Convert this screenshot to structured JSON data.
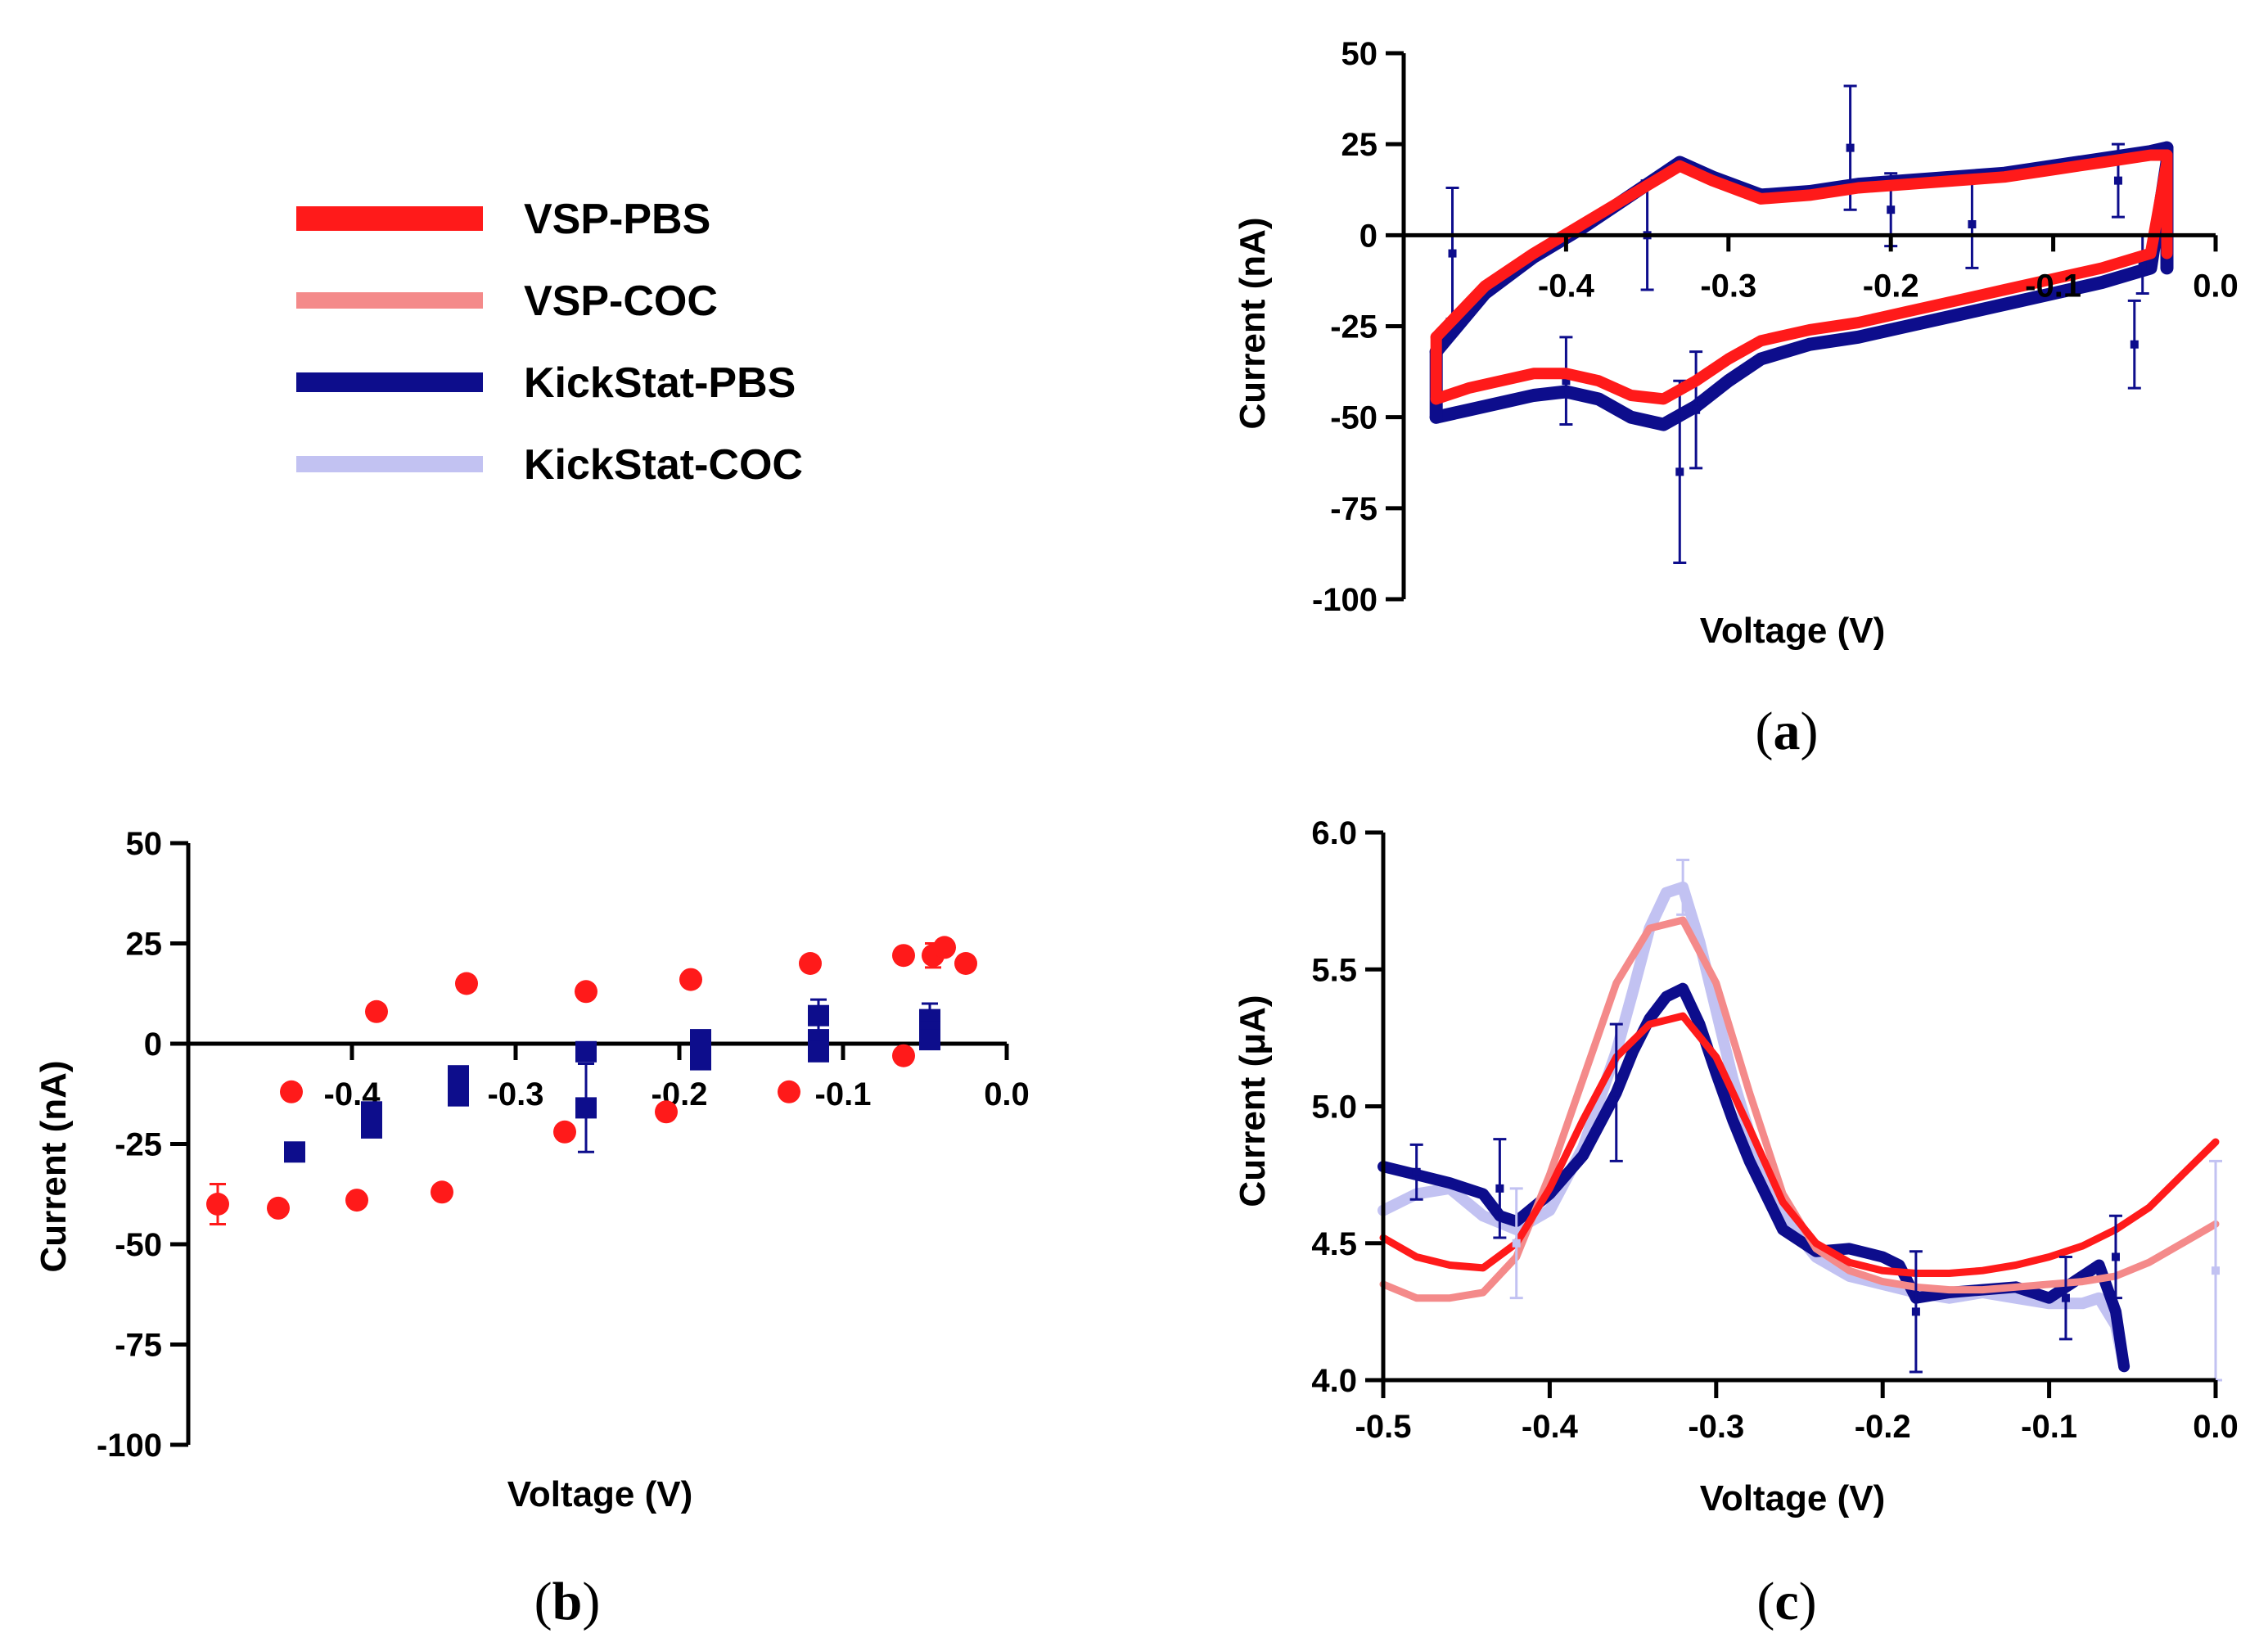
{
  "colors": {
    "vsp_pbs": "#ff1a1a",
    "vsp_coc": "#f48a8a",
    "kickstat_pbs": "#0d0d8c",
    "kickstat_coc": "#c2c2f2"
  },
  "legend": {
    "items": [
      {
        "label": "VSP-PBS",
        "color": "#ff1a1a"
      },
      {
        "label": "VSP-COC",
        "color": "#f48a8a"
      },
      {
        "label": "KickStat-PBS",
        "color": "#0d0d8c"
      },
      {
        "label": "KickStat-COC",
        "color": "#c2c2f2"
      }
    ]
  },
  "panels": {
    "a": {
      "open": "(",
      "letter": "a",
      "close": ")"
    },
    "b": {
      "open": "(",
      "letter": "b",
      "close": ")"
    },
    "c": {
      "open": "(",
      "letter": "c",
      "close": ")"
    }
  },
  "chart_data": [
    {
      "id": "a",
      "type": "line",
      "xlabel": "Voltage (V)",
      "ylabel": "Current (nA)",
      "xlim": [
        -0.5,
        0.0
      ],
      "ylim": [
        -100,
        50
      ],
      "xticks": [
        -0.4,
        -0.3,
        -0.2,
        -0.1,
        0.0
      ],
      "xtick_labels": [
        "-0.4",
        "-0.3",
        "-0.2",
        "-0.1",
        "0.0"
      ],
      "yticks": [
        50,
        25,
        0,
        -25,
        -50,
        -75,
        -100
      ],
      "ytick_labels": [
        "50",
        "25",
        "0",
        "-25",
        "-50",
        "-75",
        "-100"
      ],
      "x_axis_at_y": 0,
      "description_series": "cyclic voltammogram loops",
      "series": [
        {
          "name": "KickStat-PBS",
          "upper": {
            "x": [
              -0.48,
              -0.45,
              -0.42,
              -0.39,
              -0.36,
              -0.33,
              -0.31,
              -0.28,
              -0.25,
              -0.22,
              -0.19,
              -0.16,
              -0.13,
              -0.1,
              -0.07,
              -0.04,
              -0.03
            ],
            "y": [
              -32,
              -16,
              -6,
              2,
              11,
              20,
              16,
              11,
              12,
              14,
              15,
              16,
              17,
              19,
              21,
              23,
              24
            ]
          },
          "lower": {
            "x": [
              -0.48,
              -0.46,
              -0.44,
              -0.42,
              -0.4,
              -0.38,
              -0.36,
              -0.34,
              -0.32,
              -0.3,
              -0.28,
              -0.25,
              -0.22,
              -0.19,
              -0.16,
              -0.13,
              -0.1,
              -0.07,
              -0.04,
              -0.03
            ],
            "y": [
              -50,
              -48,
              -46,
              -44,
              -43,
              -45,
              -50,
              -52,
              -47,
              -40,
              -34,
              -30,
              -28,
              -25,
              -22,
              -19,
              -16,
              -13,
              -9,
              20
            ]
          },
          "error_bars": [
            {
              "x": -0.47,
              "y": -5,
              "err": 18
            },
            {
              "x": -0.4,
              "y": -40,
              "err": 12
            },
            {
              "x": -0.35,
              "y": 0,
              "err": 15
            },
            {
              "x": -0.33,
              "y": -65,
              "err": 25
            },
            {
              "x": -0.32,
              "y": -48,
              "err": 16
            },
            {
              "x": -0.225,
              "y": 24,
              "err": 17
            },
            {
              "x": -0.2,
              "y": 7,
              "err": 10
            },
            {
              "x": -0.15,
              "y": 3,
              "err": 12
            },
            {
              "x": -0.06,
              "y": 15,
              "err": 10
            },
            {
              "x": -0.05,
              "y": -30,
              "err": 12
            },
            {
              "x": -0.045,
              "y": -8,
              "err": 8
            }
          ]
        },
        {
          "name": "VSP-PBS",
          "upper": {
            "x": [
              -0.48,
              -0.45,
              -0.42,
              -0.39,
              -0.36,
              -0.33,
              -0.31,
              -0.28,
              -0.25,
              -0.22,
              -0.19,
              -0.16,
              -0.13,
              -0.1,
              -0.07,
              -0.04,
              -0.03
            ],
            "y": [
              -28,
              -14,
              -5,
              3,
              11,
              19,
              15,
              10,
              11,
              13,
              14,
              15,
              16,
              18,
              20,
              22,
              22
            ]
          },
          "lower": {
            "x": [
              -0.48,
              -0.46,
              -0.44,
              -0.42,
              -0.4,
              -0.38,
              -0.36,
              -0.34,
              -0.32,
              -0.3,
              -0.28,
              -0.25,
              -0.22,
              -0.19,
              -0.16,
              -0.13,
              -0.1,
              -0.07,
              -0.04,
              -0.03
            ],
            "y": [
              -45,
              -42,
              -40,
              -38,
              -38,
              -40,
              -44,
              -45,
              -40,
              -34,
              -29,
              -26,
              -24,
              -21,
              -18,
              -15,
              -12,
              -9,
              -5,
              20
            ]
          }
        }
      ]
    },
    {
      "id": "b",
      "type": "scatter",
      "xlabel": "Voltage (V)",
      "ylabel": "Current (nA)",
      "xlim": [
        -0.5,
        0.0
      ],
      "ylim": [
        -100,
        50
      ],
      "xticks": [
        -0.4,
        -0.3,
        -0.2,
        -0.1,
        0.0
      ],
      "xtick_labels": [
        "-0.4",
        "-0.3",
        "-0.2",
        "-0.1",
        "0.0"
      ],
      "yticks": [
        50,
        25,
        0,
        -25,
        -50,
        -75,
        -100
      ],
      "ytick_labels": [
        "50",
        "25",
        "0",
        "-25",
        "-50",
        "-75",
        "-100"
      ],
      "x_axis_at_y": 0,
      "series": [
        {
          "name": "VSP-PBS",
          "marker": "circle",
          "points": [
            {
              "x": -0.482,
              "y": -40,
              "err": 5
            },
            {
              "x": -0.445,
              "y": -41
            },
            {
              "x": -0.437,
              "y": -12
            },
            {
              "x": -0.397,
              "y": -39
            },
            {
              "x": -0.385,
              "y": 8
            },
            {
              "x": -0.345,
              "y": -37
            },
            {
              "x": -0.33,
              "y": 15
            },
            {
              "x": -0.27,
              "y": -22
            },
            {
              "x": -0.257,
              "y": 13
            },
            {
              "x": -0.208,
              "y": -17
            },
            {
              "x": -0.193,
              "y": 16
            },
            {
              "x": -0.133,
              "y": -12
            },
            {
              "x": -0.12,
              "y": 20
            },
            {
              "x": -0.063,
              "y": -3
            },
            {
              "x": -0.063,
              "y": 22
            },
            {
              "x": -0.045,
              "y": 22,
              "err": 3
            },
            {
              "x": -0.038,
              "y": 24
            },
            {
              "x": -0.025,
              "y": 20
            }
          ]
        },
        {
          "name": "KickStat-PBS",
          "marker": "square",
          "points": [
            {
              "x": -0.435,
              "y": -27
            },
            {
              "x": -0.388,
              "y": -17
            },
            {
              "x": -0.388,
              "y": -21
            },
            {
              "x": -0.335,
              "y": -8
            },
            {
              "x": -0.335,
              "y": -13
            },
            {
              "x": -0.257,
              "y": -2
            },
            {
              "x": -0.257,
              "y": -16,
              "err": 11
            },
            {
              "x": -0.187,
              "y": 1
            },
            {
              "x": -0.187,
              "y": -4
            },
            {
              "x": -0.115,
              "y": 7,
              "err": 4
            },
            {
              "x": -0.115,
              "y": 1
            },
            {
              "x": -0.115,
              "y": -2
            },
            {
              "x": -0.047,
              "y": 6,
              "err": 4
            },
            {
              "x": -0.047,
              "y": 3
            },
            {
              "x": -0.047,
              "y": 1
            }
          ]
        }
      ]
    },
    {
      "id": "c",
      "type": "line",
      "xlabel": "Voltage (V)",
      "ylabel": "Current (μA)",
      "xlim": [
        -0.5,
        0.0
      ],
      "ylim": [
        4.0,
        6.0
      ],
      "xticks": [
        -0.5,
        -0.4,
        -0.3,
        -0.2,
        -0.1,
        0.0
      ],
      "xtick_labels": [
        "-0.5",
        "-0.4",
        "-0.3",
        "-0.2",
        "-0.1",
        "0.0"
      ],
      "yticks": [
        6.0,
        5.5,
        5.0,
        4.5,
        4.0
      ],
      "ytick_labels": [
        "6.0",
        "5.5",
        "5.0",
        "4.5",
        "4.0"
      ],
      "series": [
        {
          "name": "KickStat-COC",
          "x": [
            -0.5,
            -0.48,
            -0.46,
            -0.44,
            -0.42,
            -0.4,
            -0.38,
            -0.36,
            -0.35,
            -0.34,
            -0.33,
            -0.32,
            -0.31,
            -0.3,
            -0.29,
            -0.28,
            -0.26,
            -0.24,
            -0.22,
            -0.2,
            -0.18,
            -0.16,
            -0.14,
            -0.12,
            -0.1,
            -0.08,
            -0.07,
            -0.06,
            -0.055
          ],
          "y": [
            4.62,
            4.68,
            4.7,
            4.6,
            4.55,
            4.62,
            4.85,
            5.2,
            5.42,
            5.65,
            5.78,
            5.8,
            5.6,
            5.35,
            5.1,
            4.9,
            4.6,
            4.45,
            4.38,
            4.35,
            4.32,
            4.3,
            4.32,
            4.3,
            4.28,
            4.28,
            4.3,
            4.2,
            4.05
          ]
        },
        {
          "name": "KickStat-PBS",
          "x": [
            -0.5,
            -0.48,
            -0.46,
            -0.44,
            -0.43,
            -0.42,
            -0.4,
            -0.38,
            -0.36,
            -0.35,
            -0.34,
            -0.33,
            -0.32,
            -0.31,
            -0.3,
            -0.29,
            -0.28,
            -0.26,
            -0.24,
            -0.22,
            -0.2,
            -0.19,
            -0.18,
            -0.16,
            -0.14,
            -0.12,
            -0.1,
            -0.08,
            -0.07,
            -0.06,
            -0.055
          ],
          "y": [
            4.78,
            4.75,
            4.72,
            4.68,
            4.6,
            4.58,
            4.68,
            4.82,
            5.05,
            5.2,
            5.32,
            5.4,
            5.43,
            5.3,
            5.12,
            4.95,
            4.8,
            4.55,
            4.47,
            4.48,
            4.45,
            4.42,
            4.3,
            4.32,
            4.33,
            4.34,
            4.3,
            4.38,
            4.42,
            4.25,
            4.05
          ]
        },
        {
          "name": "VSP-COC",
          "x": [
            -0.5,
            -0.48,
            -0.46,
            -0.44,
            -0.42,
            -0.4,
            -0.38,
            -0.36,
            -0.34,
            -0.32,
            -0.3,
            -0.28,
            -0.26,
            -0.24,
            -0.22,
            -0.2,
            -0.18,
            -0.16,
            -0.14,
            -0.12,
            -0.1,
            -0.08,
            -0.06,
            -0.04,
            -0.02,
            0.0
          ],
          "y": [
            4.35,
            4.3,
            4.3,
            4.32,
            4.45,
            4.75,
            5.1,
            5.45,
            5.65,
            5.68,
            5.45,
            5.05,
            4.68,
            4.48,
            4.4,
            4.36,
            4.34,
            4.33,
            4.33,
            4.34,
            4.35,
            4.36,
            4.38,
            4.43,
            4.5,
            4.57
          ]
        },
        {
          "name": "VSP-PBS",
          "x": [
            -0.5,
            -0.48,
            -0.46,
            -0.44,
            -0.42,
            -0.4,
            -0.38,
            -0.36,
            -0.34,
            -0.32,
            -0.3,
            -0.28,
            -0.26,
            -0.24,
            -0.22,
            -0.2,
            -0.18,
            -0.16,
            -0.14,
            -0.12,
            -0.1,
            -0.08,
            -0.06,
            -0.04,
            -0.02,
            0.0
          ],
          "y": [
            4.52,
            4.45,
            4.42,
            4.41,
            4.5,
            4.7,
            4.95,
            5.18,
            5.3,
            5.33,
            5.18,
            4.92,
            4.65,
            4.5,
            4.43,
            4.4,
            4.39,
            4.39,
            4.4,
            4.42,
            4.45,
            4.49,
            4.55,
            4.63,
            4.75,
            4.87
          ]
        }
      ],
      "error_bars": [
        {
          "series": "KickStat-PBS",
          "x": -0.48,
          "y": 4.76,
          "err": 0.1
        },
        {
          "series": "KickStat-PBS",
          "x": -0.43,
          "y": 4.7,
          "err": 0.18
        },
        {
          "series": "KickStat-PBS",
          "x": -0.36,
          "y": 5.05,
          "err": 0.25
        },
        {
          "series": "KickStat-PBS",
          "x": -0.18,
          "y": 4.25,
          "err": 0.22
        },
        {
          "series": "KickStat-PBS",
          "x": -0.06,
          "y": 4.45,
          "err": 0.15
        },
        {
          "series": "KickStat-PBS",
          "x": -0.09,
          "y": 4.3,
          "err": 0.15
        },
        {
          "series": "KickStat-COC",
          "x": -0.42,
          "y": 4.5,
          "err": 0.2
        },
        {
          "series": "KickStat-COC",
          "x": -0.32,
          "y": 5.8,
          "err": 0.1
        },
        {
          "series": "KickStat-COC",
          "x": 0.0,
          "y": 4.4,
          "err": 0.4
        }
      ]
    }
  ]
}
